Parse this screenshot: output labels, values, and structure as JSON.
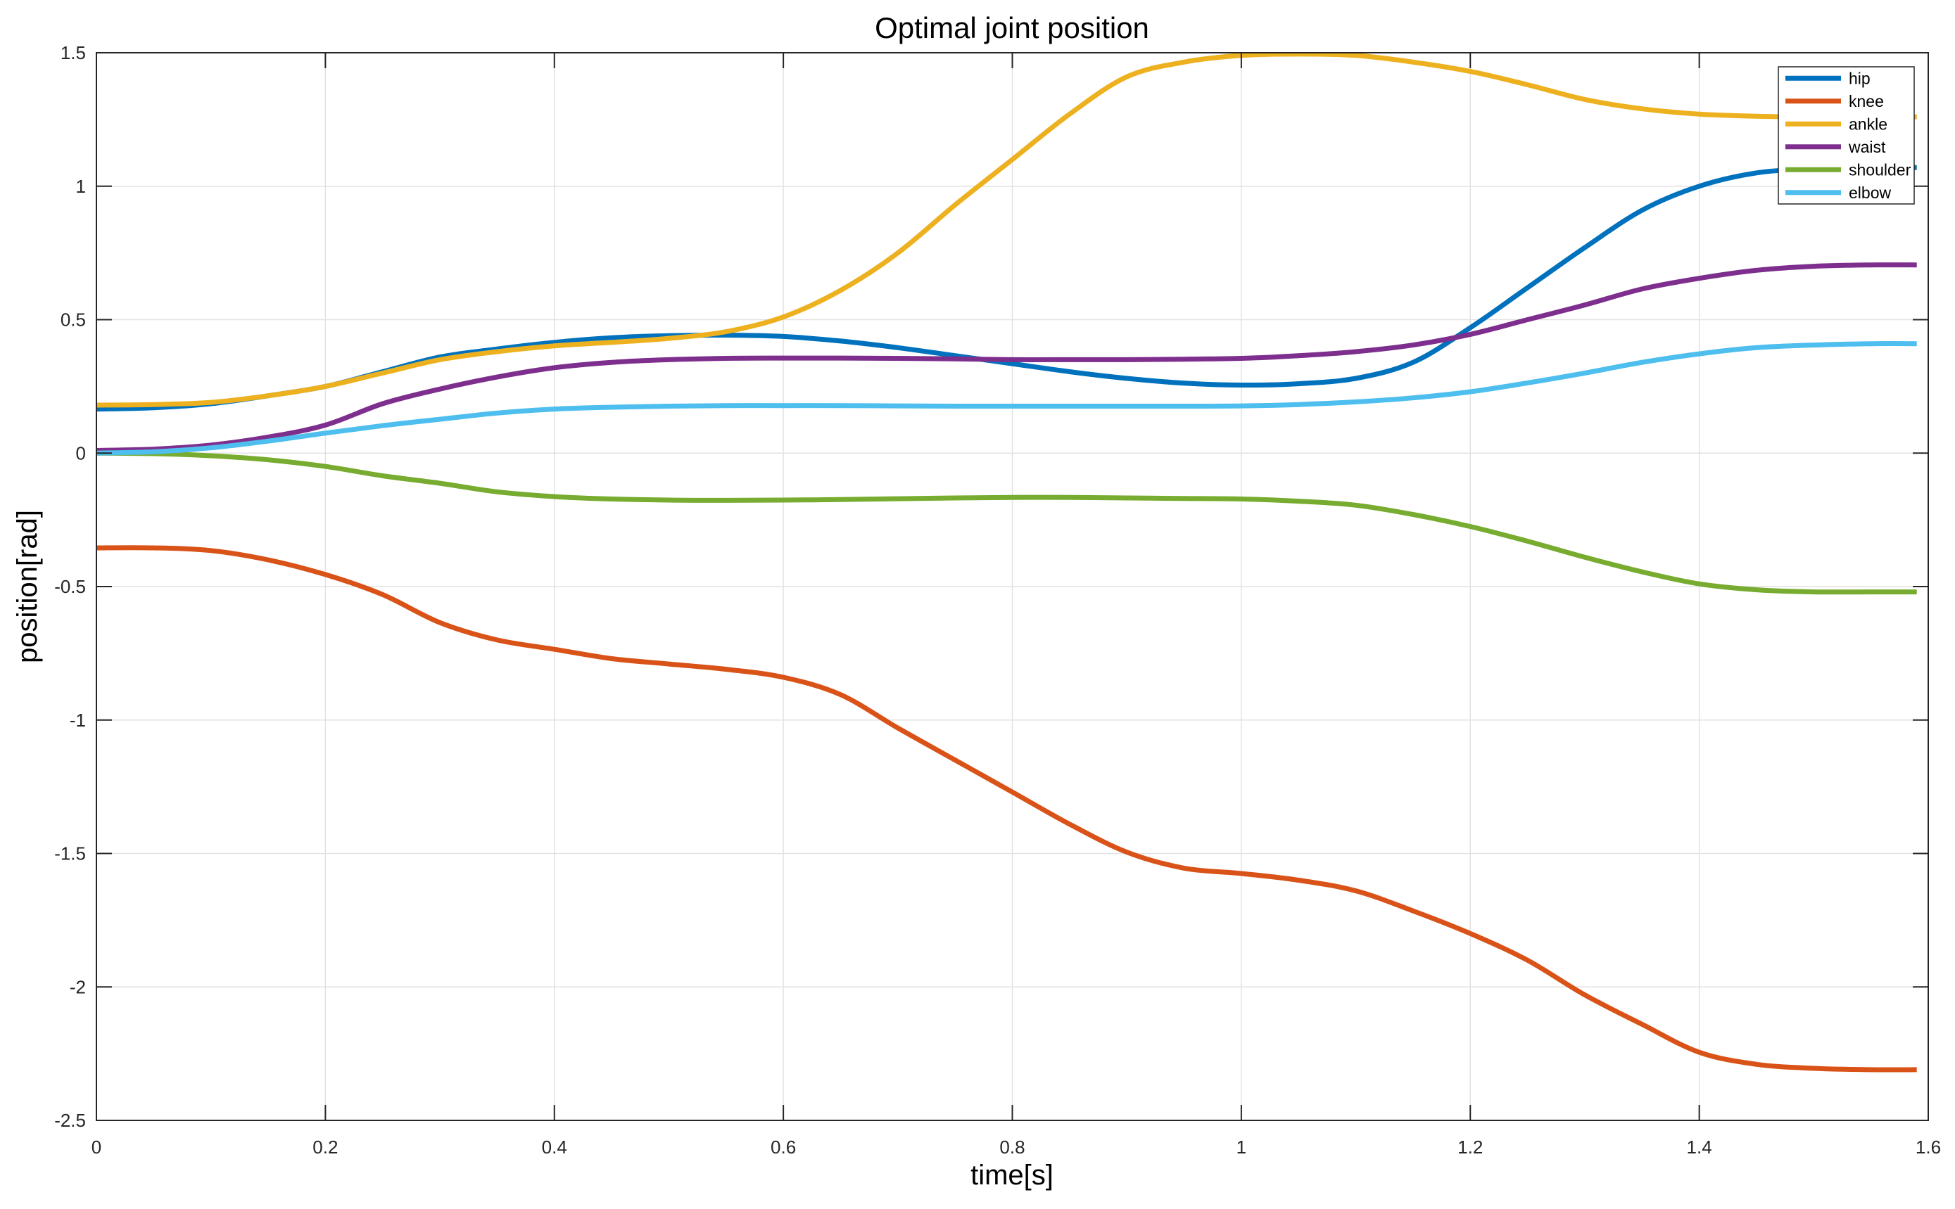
{
  "chart_data": {
    "type": "line",
    "title": "Optimal joint position",
    "xlabel": "time[s]",
    "ylabel": "position[rad]",
    "xlim": [
      0,
      1.6
    ],
    "ylim": [
      -2.5,
      1.5
    ],
    "xtick_values": [
      0,
      0.2,
      0.4,
      0.6,
      0.8,
      1,
      1.2,
      1.4,
      1.6
    ],
    "xtick_labels": [
      "0",
      "0.2",
      "0.4",
      "0.6",
      "0.8",
      "1",
      "1.2",
      "1.4",
      "1.6"
    ],
    "ytick_values": [
      -2.5,
      -2,
      -1.5,
      -1,
      -0.5,
      0,
      0.5,
      1,
      1.5
    ],
    "ytick_labels": [
      "-2.5",
      "-2",
      "-1.5",
      "-1",
      "-0.5",
      "0",
      "0.5",
      "1",
      "1.5"
    ],
    "grid": true,
    "legend_position": "northeast",
    "background_color": "#ffffff",
    "axis_color": "#262626",
    "grid_color": "#e2e2e2",
    "title_color": "#000000",
    "x": [
      0,
      0.05,
      0.1,
      0.15,
      0.2,
      0.25,
      0.3,
      0.35,
      0.4,
      0.45,
      0.5,
      0.55,
      0.6,
      0.65,
      0.7,
      0.75,
      0.8,
      0.85,
      0.9,
      0.95,
      1,
      1.05,
      1.1,
      1.15,
      1.2,
      1.25,
      1.3,
      1.35,
      1.4,
      1.45,
      1.5,
      1.55,
      1.59
    ],
    "series": [
      {
        "name": "hip",
        "color": "#0072BD",
        "values": [
          0.165,
          0.17,
          0.185,
          0.215,
          0.25,
          0.305,
          0.36,
          0.39,
          0.415,
          0.432,
          0.44,
          0.442,
          0.437,
          0.42,
          0.395,
          0.365,
          0.335,
          0.305,
          0.28,
          0.262,
          0.255,
          0.26,
          0.28,
          0.34,
          0.47,
          0.62,
          0.77,
          0.91,
          1.0,
          1.05,
          1.065,
          1.07,
          1.07
        ]
      },
      {
        "name": "knee",
        "color": "#D95319",
        "values": [
          -0.355,
          -0.355,
          -0.365,
          -0.4,
          -0.455,
          -0.53,
          -0.635,
          -0.7,
          -0.735,
          -0.77,
          -0.79,
          -0.81,
          -0.84,
          -0.905,
          -1.03,
          -1.15,
          -1.27,
          -1.39,
          -1.495,
          -1.555,
          -1.575,
          -1.6,
          -1.64,
          -1.715,
          -1.8,
          -1.9,
          -2.03,
          -2.14,
          -2.245,
          -2.29,
          -2.305,
          -2.31,
          -2.31
        ]
      },
      {
        "name": "ankle",
        "color": "#EDB120",
        "values": [
          0.18,
          0.182,
          0.19,
          0.215,
          0.25,
          0.3,
          0.35,
          0.38,
          0.402,
          0.415,
          0.43,
          0.455,
          0.51,
          0.61,
          0.75,
          0.93,
          1.1,
          1.27,
          1.41,
          1.465,
          1.49,
          1.495,
          1.49,
          1.465,
          1.43,
          1.38,
          1.325,
          1.29,
          1.27,
          1.262,
          1.26,
          1.26,
          1.26
        ]
      },
      {
        "name": "waist",
        "color": "#7E2F8E",
        "values": [
          0.01,
          0.015,
          0.03,
          0.06,
          0.105,
          0.185,
          0.24,
          0.285,
          0.32,
          0.34,
          0.35,
          0.355,
          0.356,
          0.356,
          0.355,
          0.353,
          0.35,
          0.35,
          0.35,
          0.352,
          0.355,
          0.365,
          0.38,
          0.405,
          0.445,
          0.5,
          0.555,
          0.615,
          0.655,
          0.685,
          0.7,
          0.705,
          0.705
        ]
      },
      {
        "name": "shoulder",
        "color": "#77AC30",
        "values": [
          0,
          -0.002,
          -0.01,
          -0.025,
          -0.05,
          -0.085,
          -0.113,
          -0.145,
          -0.163,
          -0.172,
          -0.176,
          -0.177,
          -0.176,
          -0.174,
          -0.171,
          -0.168,
          -0.166,
          -0.166,
          -0.168,
          -0.17,
          -0.172,
          -0.18,
          -0.195,
          -0.23,
          -0.275,
          -0.33,
          -0.39,
          -0.445,
          -0.49,
          -0.512,
          -0.52,
          -0.52,
          -0.52
        ]
      },
      {
        "name": "elbow",
        "color": "#4DBEEE",
        "values": [
          0,
          0.005,
          0.02,
          0.045,
          0.075,
          0.103,
          0.127,
          0.15,
          0.165,
          0.172,
          0.176,
          0.178,
          0.178,
          0.178,
          0.177,
          0.176,
          0.176,
          0.176,
          0.176,
          0.176,
          0.177,
          0.182,
          0.192,
          0.207,
          0.23,
          0.263,
          0.3,
          0.34,
          0.372,
          0.395,
          0.405,
          0.41,
          0.41
        ]
      }
    ]
  }
}
